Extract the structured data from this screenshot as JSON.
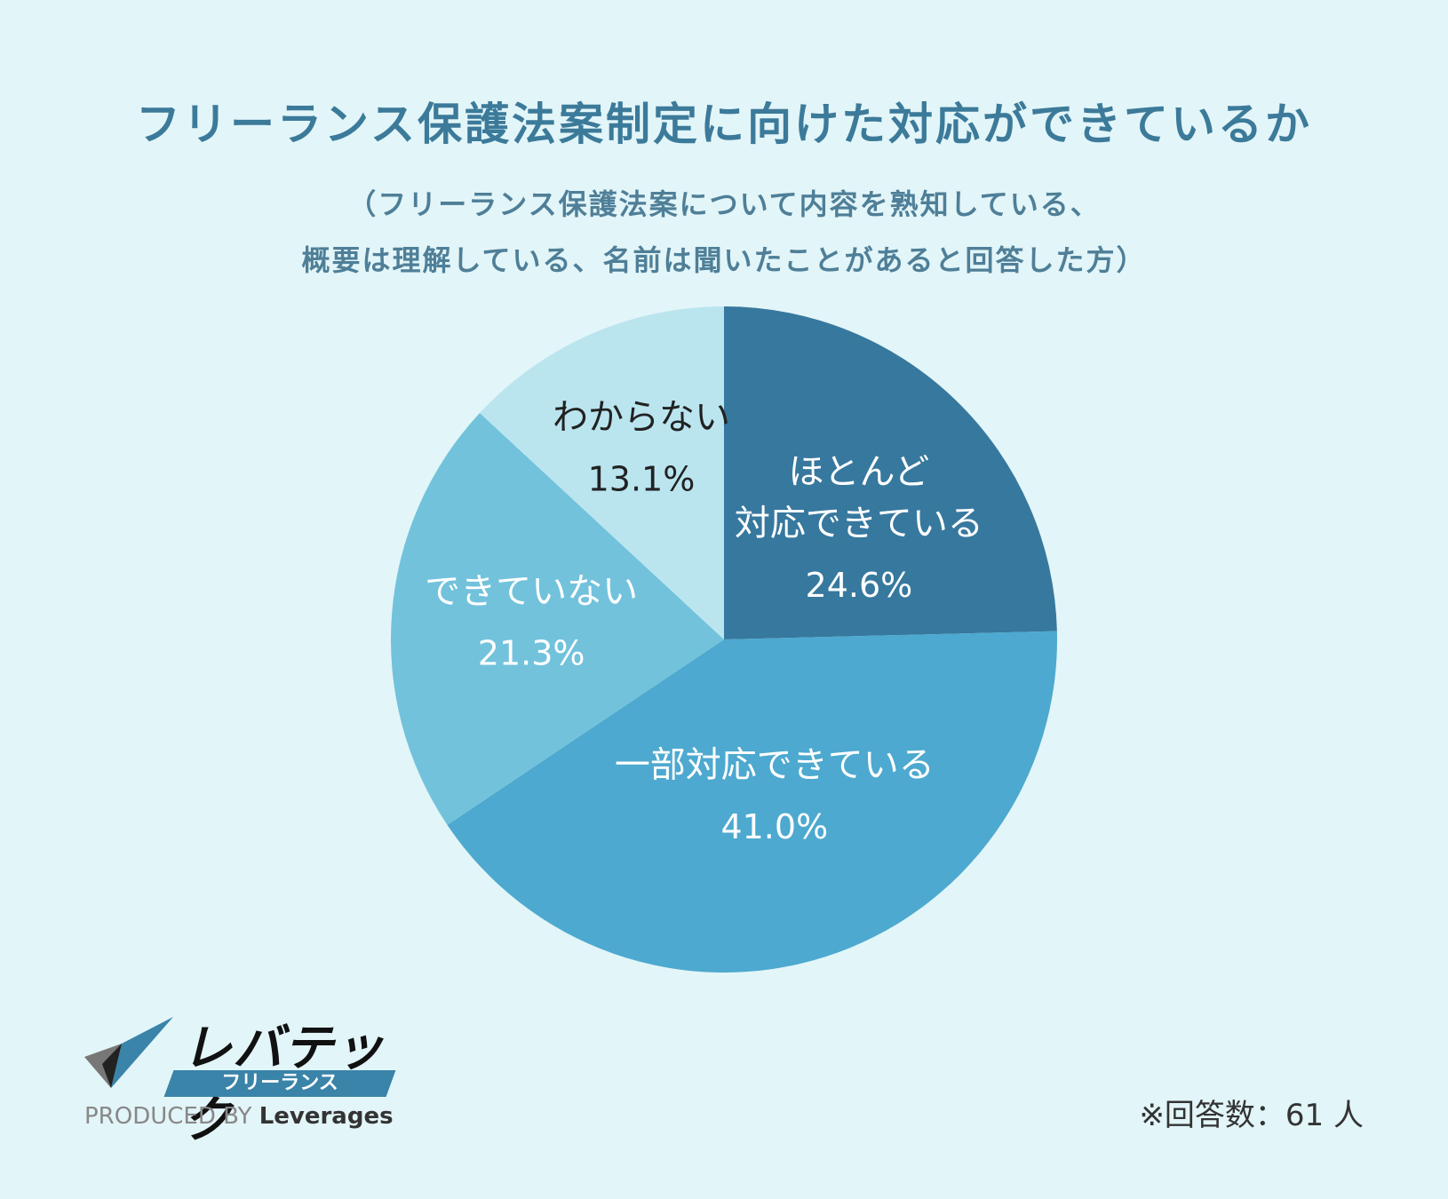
{
  "header": {
    "title": "フリーランス保護法案制定に向けた対応ができているか",
    "subtitle_line1": "（フリーランス保護法案について内容を熟知している、",
    "subtitle_line2": "概要は理解している、名前は聞いたことがあると回答した方）"
  },
  "chart_data": {
    "type": "pie",
    "start": "12 o'clock, clockwise",
    "slices": [
      {
        "label_lines": [
          "ほとんど",
          "対応できている"
        ],
        "value": 24.6,
        "value_text": "24.6%",
        "color": "#37789e",
        "label_color": "#ffffff"
      },
      {
        "label_lines": [
          "一部対応できている"
        ],
        "value": 41.0,
        "value_text": "41.0%",
        "color": "#4da9cf",
        "label_color": "#ffffff"
      },
      {
        "label_lines": [
          "できていない"
        ],
        "value": 21.3,
        "value_text": "21.3%",
        "color": "#72c2dc",
        "label_color": "#ffffff"
      },
      {
        "label_lines": [
          "わからない"
        ],
        "value": 13.1,
        "value_text": "13.1%",
        "color": "#bae5ef",
        "label_color": "#222222"
      }
    ]
  },
  "footer": {
    "respondents": "※回答数：61 人"
  },
  "logo": {
    "brand": "レバテック",
    "sub": "フリーランス",
    "produced_by": "PRODUCED BY",
    "company": "Leverages",
    "accent_color": "#3a83a9"
  }
}
